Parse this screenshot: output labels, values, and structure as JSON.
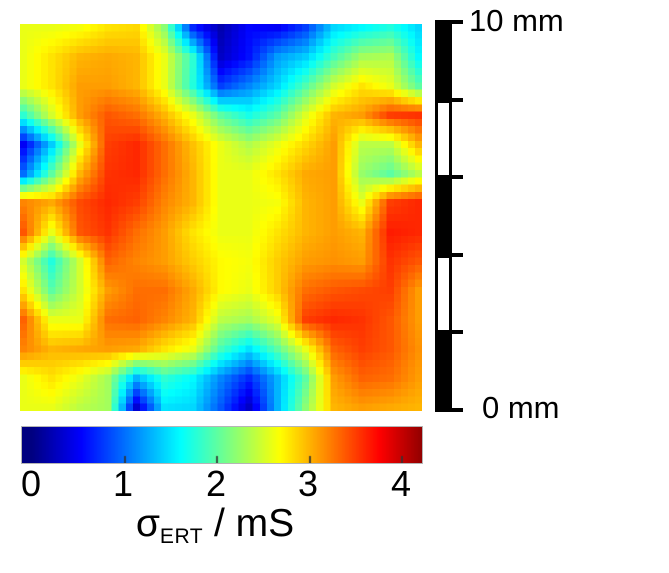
{
  "figure": {
    "scale_ruler": {
      "top_label": "10 mm",
      "bottom_label": "0 mm"
    },
    "colorbar": {
      "tick_labels": [
        "0",
        "1",
        "2",
        "3",
        "4"
      ],
      "label": {
        "sigma": "σ",
        "sub": "ERT",
        "rest": " / mS"
      }
    }
  },
  "chart_data": {
    "type": "heatmap",
    "colormap": "jet",
    "value_label": "σ_ERT / mS",
    "value_unit": "mS",
    "value_range": [
      0,
      4.3
    ],
    "colorbar_ticks": [
      0,
      1,
      2,
      3,
      4
    ],
    "scale_ruler_mm": {
      "min": 0,
      "max": 10,
      "segments": 5
    },
    "grid": {
      "cols": 15,
      "rows": 14,
      "values_mS": [
        [
          2.6,
          2.6,
          2.65,
          2.8,
          2.85,
          2.2,
          0.7,
          0.2,
          0.55,
          0.5,
          0.8,
          1.45,
          1.6,
          1.75,
          1.45
        ],
        [
          2.6,
          2.8,
          3.0,
          3.05,
          3.0,
          2.6,
          1.8,
          0.3,
          0.6,
          1.2,
          1.4,
          1.9,
          2.3,
          2.35,
          1.6
        ],
        [
          2.6,
          2.8,
          3.1,
          3.1,
          3.0,
          2.6,
          1.75,
          0.8,
          1.1,
          1.45,
          1.95,
          2.5,
          2.8,
          2.6,
          2.0
        ],
        [
          1.8,
          2.5,
          3.1,
          3.4,
          3.3,
          3.0,
          2.6,
          2.0,
          1.7,
          2.0,
          2.55,
          3.0,
          3.1,
          3.5,
          3.55
        ],
        [
          0.5,
          1.4,
          2.6,
          3.5,
          3.6,
          3.3,
          2.95,
          2.6,
          2.35,
          2.6,
          2.85,
          3.1,
          2.4,
          2.4,
          3.0
        ],
        [
          1.0,
          2.0,
          3.0,
          3.55,
          3.6,
          3.3,
          3.0,
          2.6,
          2.6,
          2.8,
          3.05,
          3.1,
          2.25,
          2.0,
          2.4
        ],
        [
          3.2,
          3.05,
          3.45,
          3.6,
          3.5,
          3.2,
          3.0,
          2.6,
          2.6,
          2.65,
          3.0,
          3.1,
          2.6,
          3.5,
          3.6
        ],
        [
          3.4,
          2.6,
          3.4,
          3.55,
          3.3,
          3.1,
          2.8,
          2.6,
          2.6,
          2.8,
          3.0,
          3.1,
          3.0,
          3.65,
          3.6
        ],
        [
          2.5,
          1.75,
          2.5,
          3.35,
          3.2,
          3.1,
          2.9,
          2.7,
          2.65,
          2.9,
          3.1,
          3.15,
          3.1,
          3.55,
          3.4
        ],
        [
          2.8,
          2.0,
          2.5,
          3.1,
          3.3,
          3.3,
          3.05,
          2.7,
          2.6,
          2.9,
          3.3,
          3.4,
          3.45,
          3.5,
          3.1
        ],
        [
          3.35,
          2.6,
          2.6,
          3.3,
          3.35,
          3.2,
          3.0,
          2.4,
          2.3,
          2.6,
          3.5,
          3.6,
          3.55,
          3.4,
          3.1
        ],
        [
          3.2,
          3.0,
          3.05,
          3.1,
          3.05,
          2.8,
          2.6,
          1.9,
          1.5,
          2.0,
          2.6,
          3.35,
          3.5,
          3.4,
          3.15
        ],
        [
          2.6,
          2.8,
          2.6,
          2.3,
          1.3,
          1.8,
          1.6,
          1.1,
          0.7,
          1.3,
          2.0,
          3.1,
          3.35,
          3.3,
          3.1
        ],
        [
          2.6,
          2.6,
          2.4,
          2.3,
          0.35,
          1.5,
          1.45,
          0.9,
          0.3,
          1.3,
          2.2,
          3.0,
          3.1,
          3.05,
          3.0
        ]
      ]
    }
  }
}
